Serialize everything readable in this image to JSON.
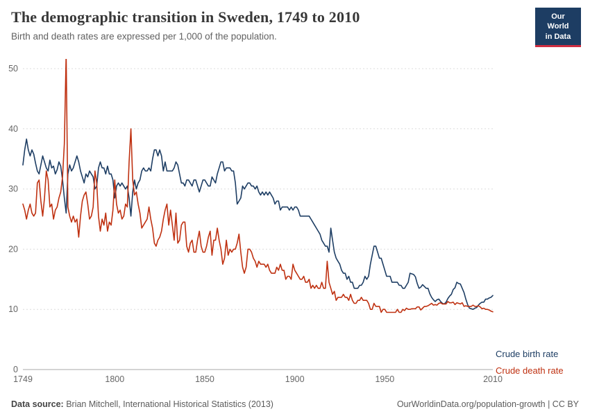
{
  "header": {
    "title": "The demographic transition in Sweden, 1749 to 2010",
    "subtitle": "Birth and death rates are expressed per 1,000 of the population."
  },
  "logo": {
    "line1": "Our World",
    "line2": "in Data",
    "bg_color": "#1d3d63",
    "accent_color": "#cf2e41"
  },
  "footer": {
    "source_label": "Data source:",
    "source_text": " Brian Mitchell, International Historical Statistics (2013)",
    "right_text": "OurWorldinData.org/population-growth | CC BY"
  },
  "chart_data": {
    "type": "line",
    "title": "The demographic transition in Sweden, 1749 to 2010",
    "subtitle": "Birth and death rates are expressed per 1,000 of the population.",
    "xlabel": "",
    "ylabel": "",
    "xlim": [
      1749,
      2010
    ],
    "ylim": [
      0,
      50
    ],
    "x_start": 1749,
    "x_step": 1,
    "x_ticks": [
      1749,
      1800,
      1850,
      1900,
      1950,
      2010
    ],
    "y_ticks": [
      0,
      10,
      20,
      30,
      40,
      50
    ],
    "grid": "horizontal-dashed",
    "legend_position": "line-end-labels-right",
    "series": [
      {
        "name": "Crude birth rate",
        "color": "#1d3d63",
        "values": [
          34,
          36.5,
          38.3,
          36.5,
          35.5,
          36.5,
          35.8,
          34.3,
          33.0,
          32.5,
          34.0,
          35.5,
          34.5,
          33.5,
          33.0,
          34.8,
          33.5,
          33.8,
          32.5,
          33.2,
          34.5,
          33.8,
          31.5,
          28.5,
          26.0,
          32.5,
          34.0,
          33.0,
          33.5,
          34.5,
          35.5,
          34.5,
          33.0,
          32.0,
          31.0,
          32.5,
          32.0,
          33.0,
          32.5,
          32.0,
          30.0,
          30.5,
          33.5,
          34.5,
          33.5,
          33.5,
          32.5,
          33.8,
          32.5,
          32.5,
          31.5,
          28.5,
          30.5,
          31.0,
          30.5,
          31.0,
          30.5,
          30.0,
          30.5,
          28.5,
          25.5,
          29.5,
          31.5,
          30.0,
          31.0,
          31.5,
          33.0,
          33.5,
          33.0,
          33.0,
          33.5,
          33.0,
          35.0,
          36.5,
          36.5,
          35.5,
          36.5,
          35.5,
          33.0,
          34.5,
          33.0,
          33.0,
          33.0,
          33.0,
          33.5,
          34.5,
          34.0,
          32.5,
          31.0,
          31.0,
          30.5,
          31.5,
          31.5,
          31.0,
          30.5,
          31.5,
          31.5,
          30.5,
          29.5,
          30.5,
          31.5,
          31.5,
          31.0,
          30.5,
          30.5,
          32.0,
          31.5,
          31.0,
          32.5,
          33.5,
          34.5,
          34.5,
          33.0,
          33.5,
          33.5,
          33.5,
          33.0,
          33.0,
          31.0,
          27.5,
          28.0,
          28.5,
          30.5,
          30.0,
          30.5,
          31.0,
          31.0,
          30.5,
          30.5,
          30.0,
          30.5,
          29.5,
          29.0,
          29.5,
          29.0,
          29.5,
          29.0,
          29.5,
          29.0,
          28.5,
          27.5,
          28.0,
          28.0,
          26.5,
          27.0,
          27.0,
          27.0,
          27.0,
          26.5,
          27.0,
          26.5,
          27.0,
          27.0,
          26.5,
          25.5,
          25.5,
          25.5,
          25.5,
          25.5,
          25.5,
          25.0,
          24.5,
          24.0,
          23.5,
          23.0,
          22.5,
          21.5,
          21.0,
          20.5,
          20.5,
          19.5,
          23.5,
          21.5,
          19.5,
          18.5,
          18.0,
          17.5,
          16.5,
          16.0,
          16.0,
          15.0,
          15.5,
          14.5,
          14.5,
          13.5,
          13.5,
          13.5,
          14.0,
          14.0,
          14.5,
          15.5,
          15.0,
          15.5,
          17.5,
          19.0,
          20.5,
          20.5,
          19.5,
          18.5,
          18.5,
          17.5,
          16.5,
          15.5,
          15.5,
          15.5,
          14.5,
          14.5,
          14.5,
          14.5,
          14.0,
          14.0,
          13.5,
          13.5,
          14.0,
          14.5,
          16.0,
          15.9,
          15.8,
          15.4,
          14.3,
          13.5,
          13.7,
          14.1,
          13.8,
          13.5,
          13.5,
          12.6,
          12.0,
          11.6,
          11.3,
          11.6,
          11.7,
          11.3,
          11.0,
          10.9,
          11.2,
          11.8,
          12.2,
          12.5,
          13.3,
          13.6,
          14.5,
          14.3,
          14.2,
          13.5,
          12.8,
          11.7,
          10.8,
          10.2,
          10.1,
          10.0,
          10.2,
          10.3,
          10.7,
          11.0,
          11.2,
          11.2,
          11.7,
          11.7,
          11.9,
          12.0,
          12.3
        ]
      },
      {
        "name": "Crude death rate",
        "color": "#bf3111",
        "values": [
          27.5,
          26.5,
          25.0,
          26.5,
          27.5,
          26.0,
          25.5,
          26.0,
          31.0,
          31.5,
          28.0,
          25.5,
          28.5,
          33.0,
          31.5,
          27.0,
          27.5,
          25.0,
          26.5,
          27.0,
          28.5,
          29.5,
          32.0,
          37.5,
          52.5,
          27.0,
          25.5,
          24.5,
          25.5,
          24.5,
          25.0,
          22.0,
          25.5,
          28.0,
          29.0,
          29.5,
          27.5,
          25.0,
          25.5,
          27.0,
          33.0,
          31.0,
          25.5,
          23.0,
          25.0,
          24.0,
          26.0,
          23.0,
          24.5,
          24.0,
          26.5,
          31.5,
          27.5,
          26.0,
          26.5,
          25.0,
          25.5,
          27.5,
          27.0,
          34.5,
          40.0,
          31.5,
          29.0,
          29.5,
          27.5,
          26.0,
          23.5,
          24.0,
          24.5,
          25.0,
          27.0,
          25.0,
          23.5,
          21.0,
          20.5,
          21.5,
          22.0,
          23.0,
          25.0,
          26.5,
          27.5,
          24.0,
          26.5,
          24.0,
          21.5,
          26.0,
          21.0,
          21.5,
          24.0,
          24.5,
          24.5,
          20.5,
          19.5,
          21.0,
          21.5,
          19.5,
          19.5,
          21.5,
          23.0,
          20.5,
          19.5,
          19.5,
          20.5,
          22.0,
          23.0,
          19.0,
          21.5,
          21.5,
          23.5,
          21.5,
          20.0,
          17.5,
          18.5,
          21.5,
          19.0,
          20.0,
          19.5,
          20.0,
          20.0,
          21.0,
          22.5,
          19.5,
          17.0,
          16.0,
          17.0,
          20.0,
          20.0,
          19.5,
          18.5,
          18.0,
          17.0,
          18.0,
          17.5,
          17.5,
          17.5,
          17.0,
          17.5,
          16.5,
          16.0,
          16.0,
          16.0,
          17.0,
          16.5,
          17.5,
          16.5,
          16.5,
          15.0,
          15.5,
          15.5,
          15.0,
          17.5,
          16.5,
          16.0,
          15.5,
          15.0,
          15.0,
          15.5,
          14.5,
          14.5,
          15.0,
          13.5,
          14.0,
          13.5,
          14.0,
          13.5,
          13.5,
          14.5,
          13.5,
          13.5,
          18.0,
          14.5,
          13.5,
          12.5,
          13.0,
          11.5,
          12.0,
          12.0,
          12.0,
          12.5,
          12.0,
          12.0,
          11.5,
          12.5,
          11.5,
          11.0,
          11.0,
          11.5,
          11.5,
          12.0,
          11.5,
          11.5,
          11.5,
          11.0,
          10.0,
          10.0,
          11.0,
          10.5,
          10.5,
          10.5,
          9.5,
          10.0,
          10.0,
          9.5,
          9.5,
          9.5,
          9.5,
          9.5,
          9.5,
          10.0,
          9.5,
          9.5,
          10.0,
          9.8,
          10.2,
          10.0,
          10.0,
          10.1,
          10.1,
          10.1,
          10.4,
          10.4,
          9.9,
          10.2,
          10.5,
          10.5,
          10.6,
          10.8,
          11.0,
          10.7,
          10.8,
          10.7,
          11.0,
          11.1,
          10.9,
          10.9,
          10.9,
          11.3,
          11.1,
          11.1,
          11.2,
          10.8,
          11.1,
          11.0,
          10.9,
          11.1,
          10.5,
          10.6,
          10.5,
          10.5,
          10.5,
          10.7,
          10.5,
          10.5,
          10.6,
          10.4,
          10.1,
          10.2,
          10.0,
          10.0,
          9.9,
          9.7,
          9.6
        ]
      }
    ]
  }
}
